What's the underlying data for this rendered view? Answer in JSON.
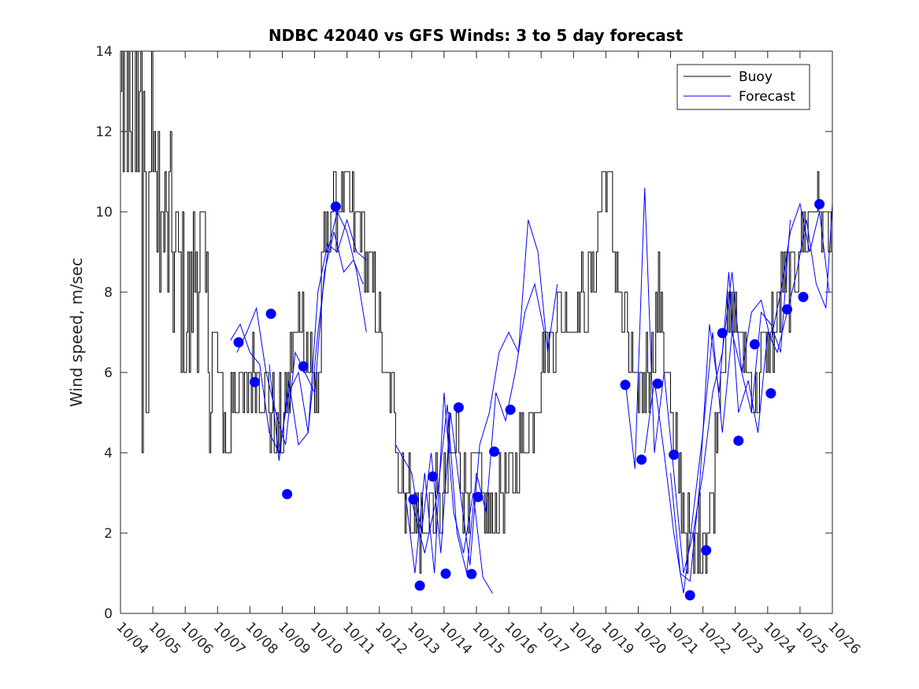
{
  "chart_data": {
    "type": "line",
    "title": "NDBC 42040 vs GFS Winds: 3 to 5 day forecast",
    "xlabel": "",
    "ylabel": "Wind speed, m/sec",
    "xlim": [
      0,
      22
    ],
    "ylim": [
      0,
      14
    ],
    "x_ticks": [
      "10/04",
      "10/05",
      "10/06",
      "10/07",
      "10/08",
      "10/09",
      "10/10",
      "10/11",
      "10/12",
      "10/13",
      "10/14",
      "10/15",
      "10/16",
      "10/17",
      "10/18",
      "10/19",
      "10/20",
      "10/21",
      "10/22",
      "10/23",
      "10/24",
      "10/25",
      "10/26"
    ],
    "y_ticks": [
      0,
      2,
      4,
      6,
      8,
      10,
      12,
      14
    ],
    "legend": {
      "placement": "top-right",
      "entries": [
        "Buoy",
        "Forecast"
      ]
    },
    "colors": {
      "buoy": "#000000",
      "forecast": "#0000ff",
      "axes": "#262626"
    },
    "buoy_anchors": [
      [
        0.0,
        12.5
      ],
      [
        0.5,
        12.0
      ],
      [
        0.8,
        11.5
      ],
      [
        1.0,
        11.0
      ],
      [
        1.3,
        9.5
      ],
      [
        1.6,
        9.0
      ],
      [
        1.9,
        8.0
      ],
      [
        2.1,
        7.0
      ],
      [
        2.3,
        9.0
      ],
      [
        2.5,
        8.5
      ],
      [
        2.8,
        6.5
      ],
      [
        3.1,
        5.5
      ],
      [
        3.3,
        4.0
      ],
      [
        3.5,
        6.0
      ],
      [
        3.8,
        5.0
      ],
      [
        4.0,
        6.0
      ],
      [
        4.3,
        6.0
      ],
      [
        4.6,
        5.0
      ],
      [
        4.8,
        4.5
      ],
      [
        5.1,
        5.0
      ],
      [
        5.3,
        6.5
      ],
      [
        5.6,
        7.5
      ],
      [
        5.9,
        6.0
      ],
      [
        6.1,
        5.5
      ],
      [
        6.3,
        9.5
      ],
      [
        6.6,
        10.0
      ],
      [
        6.9,
        10.5
      ],
      [
        7.1,
        10.0
      ],
      [
        7.4,
        9.5
      ],
      [
        7.7,
        8.5
      ],
      [
        7.9,
        7.5
      ],
      [
        8.1,
        6.0
      ],
      [
        8.4,
        5.0
      ],
      [
        8.6,
        4.0
      ],
      [
        8.9,
        3.0
      ],
      [
        9.1,
        2.5
      ],
      [
        9.3,
        2.0
      ],
      [
        9.6,
        2.5
      ],
      [
        9.9,
        3.0
      ],
      [
        10.1,
        3.5
      ],
      [
        10.4,
        4.5
      ],
      [
        10.6,
        3.0
      ],
      [
        10.9,
        3.5
      ],
      [
        11.1,
        3.0
      ],
      [
        11.4,
        2.5
      ],
      [
        11.6,
        2.5
      ],
      [
        11.9,
        3.0
      ],
      [
        12.1,
        3.5
      ],
      [
        12.4,
        4.0
      ],
      [
        12.6,
        4.5
      ],
      [
        12.9,
        5.5
      ],
      [
        13.1,
        6.5
      ],
      [
        13.4,
        7.0
      ],
      [
        13.6,
        7.5
      ],
      [
        13.9,
        7.5
      ],
      [
        14.1,
        7.5
      ],
      [
        14.4,
        8.0
      ],
      [
        14.6,
        8.5
      ],
      [
        14.9,
        11.0
      ],
      [
        15.1,
        10.5
      ],
      [
        15.4,
        8.0
      ],
      [
        15.6,
        7.0
      ],
      [
        15.9,
        5.5
      ],
      [
        16.1,
        5.5
      ],
      [
        16.4,
        6.5
      ],
      [
        16.6,
        8.0
      ],
      [
        16.9,
        6.0
      ],
      [
        17.1,
        4.0
      ],
      [
        17.4,
        2.5
      ],
      [
        17.6,
        1.5
      ],
      [
        17.8,
        1.5
      ],
      [
        18.0,
        2.0
      ],
      [
        18.3,
        3.0
      ],
      [
        18.6,
        7.0
      ],
      [
        18.9,
        7.5
      ],
      [
        19.1,
        7.0
      ],
      [
        19.4,
        6.0
      ],
      [
        19.6,
        5.5
      ],
      [
        19.9,
        6.5
      ],
      [
        20.1,
        7.0
      ],
      [
        20.4,
        8.0
      ],
      [
        20.6,
        8.0
      ],
      [
        20.9,
        9.0
      ],
      [
        21.1,
        9.5
      ],
      [
        21.4,
        10.0
      ],
      [
        21.6,
        10.0
      ],
      [
        22.0,
        9.5
      ]
    ],
    "forecast_segments": [
      [
        [
          3.4,
          6.8
        ],
        [
          3.7,
          7.2
        ],
        [
          4.0,
          6.5
        ],
        [
          4.3,
          6.2
        ],
        [
          4.6,
          4.5
        ],
        [
          4.9,
          4.0
        ],
        [
          5.2,
          5.5
        ],
        [
          5.5,
          6.0
        ],
        [
          5.8,
          4.5
        ],
        [
          6.1,
          7.0
        ],
        [
          6.4,
          9.0
        ],
        [
          6.7,
          10.0
        ],
        [
          7.0,
          9.5
        ],
        [
          7.3,
          8.5
        ],
        [
          7.6,
          7.0
        ]
      ],
      [
        [
          3.6,
          6.5
        ],
        [
          3.9,
          7.0
        ],
        [
          4.2,
          7.6
        ],
        [
          4.5,
          6.0
        ],
        [
          4.8,
          5.0
        ],
        [
          5.1,
          4.2
        ],
        [
          5.4,
          6.5
        ],
        [
          5.7,
          6.0
        ],
        [
          6.0,
          5.5
        ],
        [
          6.3,
          8.5
        ],
        [
          6.6,
          9.5
        ],
        [
          6.9,
          8.5
        ],
        [
          7.2,
          8.8
        ],
        [
          7.5,
          8.2
        ]
      ],
      [
        [
          4.6,
          6.2
        ],
        [
          4.9,
          3.8
        ],
        [
          5.2,
          5.8
        ],
        [
          5.5,
          4.2
        ],
        [
          5.8,
          4.5
        ],
        [
          6.1,
          8.0
        ],
        [
          6.4,
          9.2
        ],
        [
          6.7,
          9.0
        ],
        [
          7.0,
          9.8
        ],
        [
          7.3,
          9.0
        ],
        [
          7.6,
          8.8
        ]
      ],
      [
        [
          8.8,
          3.0
        ],
        [
          9.1,
          1.0
        ],
        [
          9.4,
          3.5
        ],
        [
          9.7,
          1.0
        ],
        [
          10.0,
          5.5
        ],
        [
          10.3,
          2.5
        ],
        [
          10.6,
          1.5
        ],
        [
          10.9,
          3.0
        ],
        [
          11.2,
          0.9
        ],
        [
          11.5,
          0.5
        ]
      ],
      [
        [
          8.5,
          4.2
        ],
        [
          9.0,
          3.5
        ],
        [
          9.3,
          2.0
        ],
        [
          9.6,
          4.0
        ],
        [
          9.9,
          1.5
        ],
        [
          10.2,
          5.0
        ],
        [
          10.5,
          3.0
        ],
        [
          10.8,
          1.2
        ],
        [
          11.1,
          4.2
        ],
        [
          11.4,
          5.0
        ],
        [
          11.7,
          6.5
        ],
        [
          12.0,
          7.0
        ],
        [
          12.3,
          6.5
        ],
        [
          12.6,
          9.8
        ],
        [
          12.9,
          9.0
        ],
        [
          13.2,
          6.5
        ],
        [
          13.5,
          8.2
        ]
      ],
      [
        [
          9.0,
          2.8
        ],
        [
          9.4,
          1.5
        ],
        [
          9.8,
          3.0
        ],
        [
          10.1,
          5.2
        ],
        [
          10.4,
          2.0
        ],
        [
          10.7,
          1.0
        ],
        [
          11.0,
          3.5
        ],
        [
          11.3,
          2.5
        ],
        [
          11.6,
          5.5
        ],
        [
          11.9,
          4.8
        ],
        [
          12.2,
          6.0
        ],
        [
          12.5,
          7.5
        ],
        [
          12.8,
          8.2
        ],
        [
          13.1,
          7.0
        ]
      ],
      [
        [
          15.6,
          5.8
        ],
        [
          15.9,
          3.6
        ],
        [
          16.2,
          10.6
        ],
        [
          16.5,
          4.0
        ],
        [
          16.8,
          6.0
        ],
        [
          17.1,
          3.5
        ],
        [
          17.4,
          1.0
        ],
        [
          17.7,
          2.0
        ],
        [
          18.0,
          3.5
        ],
        [
          18.3,
          5.5
        ],
        [
          18.6,
          6.5
        ],
        [
          18.9,
          8.5
        ],
        [
          19.2,
          6.0
        ],
        [
          19.5,
          5.0
        ],
        [
          19.8,
          7.5
        ],
        [
          20.1,
          7.2
        ],
        [
          20.4,
          6.5
        ],
        [
          20.7,
          9.8
        ]
      ],
      [
        [
          16.2,
          4.0
        ],
        [
          16.5,
          5.8
        ],
        [
          16.8,
          4.0
        ],
        [
          17.1,
          2.0
        ],
        [
          17.4,
          0.5
        ],
        [
          17.7,
          2.5
        ],
        [
          18.0,
          4.5
        ],
        [
          18.3,
          7.0
        ],
        [
          18.6,
          4.5
        ],
        [
          18.9,
          7.0
        ],
        [
          19.2,
          6.0
        ],
        [
          19.5,
          7.5
        ],
        [
          19.8,
          7.8
        ],
        [
          20.1,
          6.8
        ],
        [
          20.4,
          8.0
        ],
        [
          20.7,
          9.5
        ],
        [
          21.0,
          10.2
        ],
        [
          21.3,
          9.0
        ],
        [
          21.6,
          10.0
        ],
        [
          21.9,
          8.0
        ]
      ],
      [
        [
          17.0,
          3.5
        ],
        [
          17.3,
          1.0
        ],
        [
          17.6,
          0.8
        ],
        [
          17.9,
          3.2
        ],
        [
          18.2,
          7.2
        ],
        [
          18.5,
          5.5
        ],
        [
          18.8,
          8.5
        ],
        [
          19.1,
          5.0
        ],
        [
          19.4,
          5.8
        ],
        [
          19.7,
          4.5
        ],
        [
          20.0,
          7.0
        ],
        [
          20.3,
          6.5
        ],
        [
          20.6,
          7.5
        ],
        [
          20.9,
          8.5
        ],
        [
          21.2,
          9.8
        ],
        [
          21.5,
          8.2
        ],
        [
          21.8,
          7.6
        ],
        [
          22.0,
          10.2
        ]
      ]
    ],
    "forecast_markers": [
      [
        3.65,
        6.75
      ],
      [
        4.15,
        5.76
      ],
      [
        4.65,
        7.46
      ],
      [
        5.15,
        2.97
      ],
      [
        5.65,
        6.15
      ],
      [
        6.65,
        10.13
      ],
      [
        9.05,
        2.84
      ],
      [
        9.25,
        0.69
      ],
      [
        9.65,
        3.41
      ],
      [
        10.05,
        0.99
      ],
      [
        10.45,
        5.13
      ],
      [
        10.85,
        0.98
      ],
      [
        11.05,
        2.9
      ],
      [
        11.55,
        4.03
      ],
      [
        12.05,
        5.07
      ],
      [
        15.6,
        5.69
      ],
      [
        16.1,
        3.83
      ],
      [
        16.6,
        5.72
      ],
      [
        17.1,
        3.95
      ],
      [
        17.6,
        0.45
      ],
      [
        18.1,
        1.57
      ],
      [
        18.6,
        6.98
      ],
      [
        19.1,
        4.3
      ],
      [
        19.6,
        6.7
      ],
      [
        20.1,
        5.48
      ],
      [
        20.6,
        7.57
      ],
      [
        21.1,
        7.88
      ],
      [
        21.6,
        10.19
      ]
    ]
  }
}
